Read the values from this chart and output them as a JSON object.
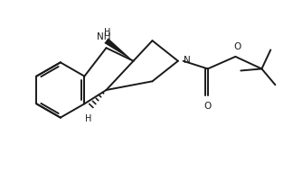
{
  "background": "#ffffff",
  "line_color": "#1a1a1a",
  "line_width": 1.4,
  "figsize": [
    3.24,
    2.0
  ],
  "dpi": 100,
  "xlim": [
    0,
    10
  ],
  "ylim": [
    0,
    6.2
  ]
}
